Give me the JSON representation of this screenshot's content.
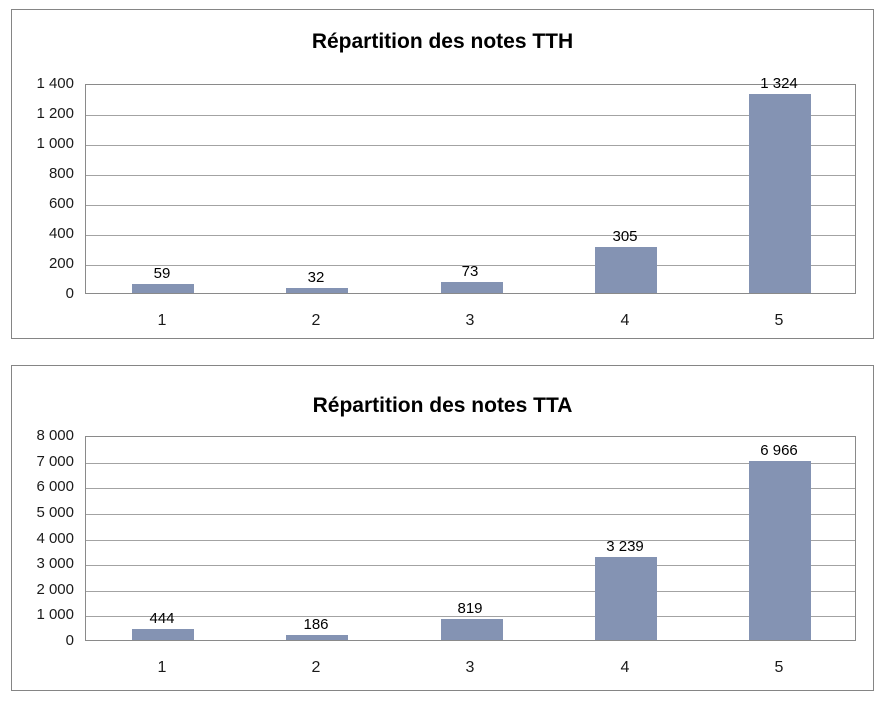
{
  "page": {
    "background_color": "#FFFFFF"
  },
  "chart_data": [
    {
      "type": "bar",
      "title": "Répartition des notes TTH",
      "categories": [
        "1",
        "2",
        "3",
        "4",
        "5"
      ],
      "values": [
        59,
        32,
        73,
        305,
        1324
      ],
      "value_labels": [
        "59",
        "32",
        "73",
        "305",
        "1 324"
      ],
      "xlabel": "",
      "ylabel": "",
      "ylim": [
        0,
        1400
      ],
      "y_tick_step": 200,
      "y_tick_labels": [
        "0",
        "200",
        "400",
        "600",
        "800",
        "1 000",
        "1 200",
        "1 400"
      ],
      "grid": true,
      "legend": false,
      "bar_color": "#8493B3",
      "gridline_color": "#A3A3A3",
      "plot_border_color": "#8A8A8A"
    },
    {
      "type": "bar",
      "title": "Répartition des notes TTA",
      "categories": [
        "1",
        "2",
        "3",
        "4",
        "5"
      ],
      "values": [
        444,
        186,
        819,
        3239,
        6966
      ],
      "value_labels": [
        "444",
        "186",
        "819",
        "3 239",
        "6 966"
      ],
      "xlabel": "",
      "ylabel": "",
      "ylim": [
        0,
        8000
      ],
      "y_tick_step": 1000,
      "y_tick_labels": [
        "0",
        "1 000",
        "2 000",
        "3 000",
        "4 000",
        "5 000",
        "6 000",
        "7 000",
        "8 000"
      ],
      "grid": true,
      "legend": false,
      "bar_color": "#8493B3",
      "gridline_color": "#A3A3A3",
      "plot_border_color": "#8A8A8A"
    }
  ]
}
